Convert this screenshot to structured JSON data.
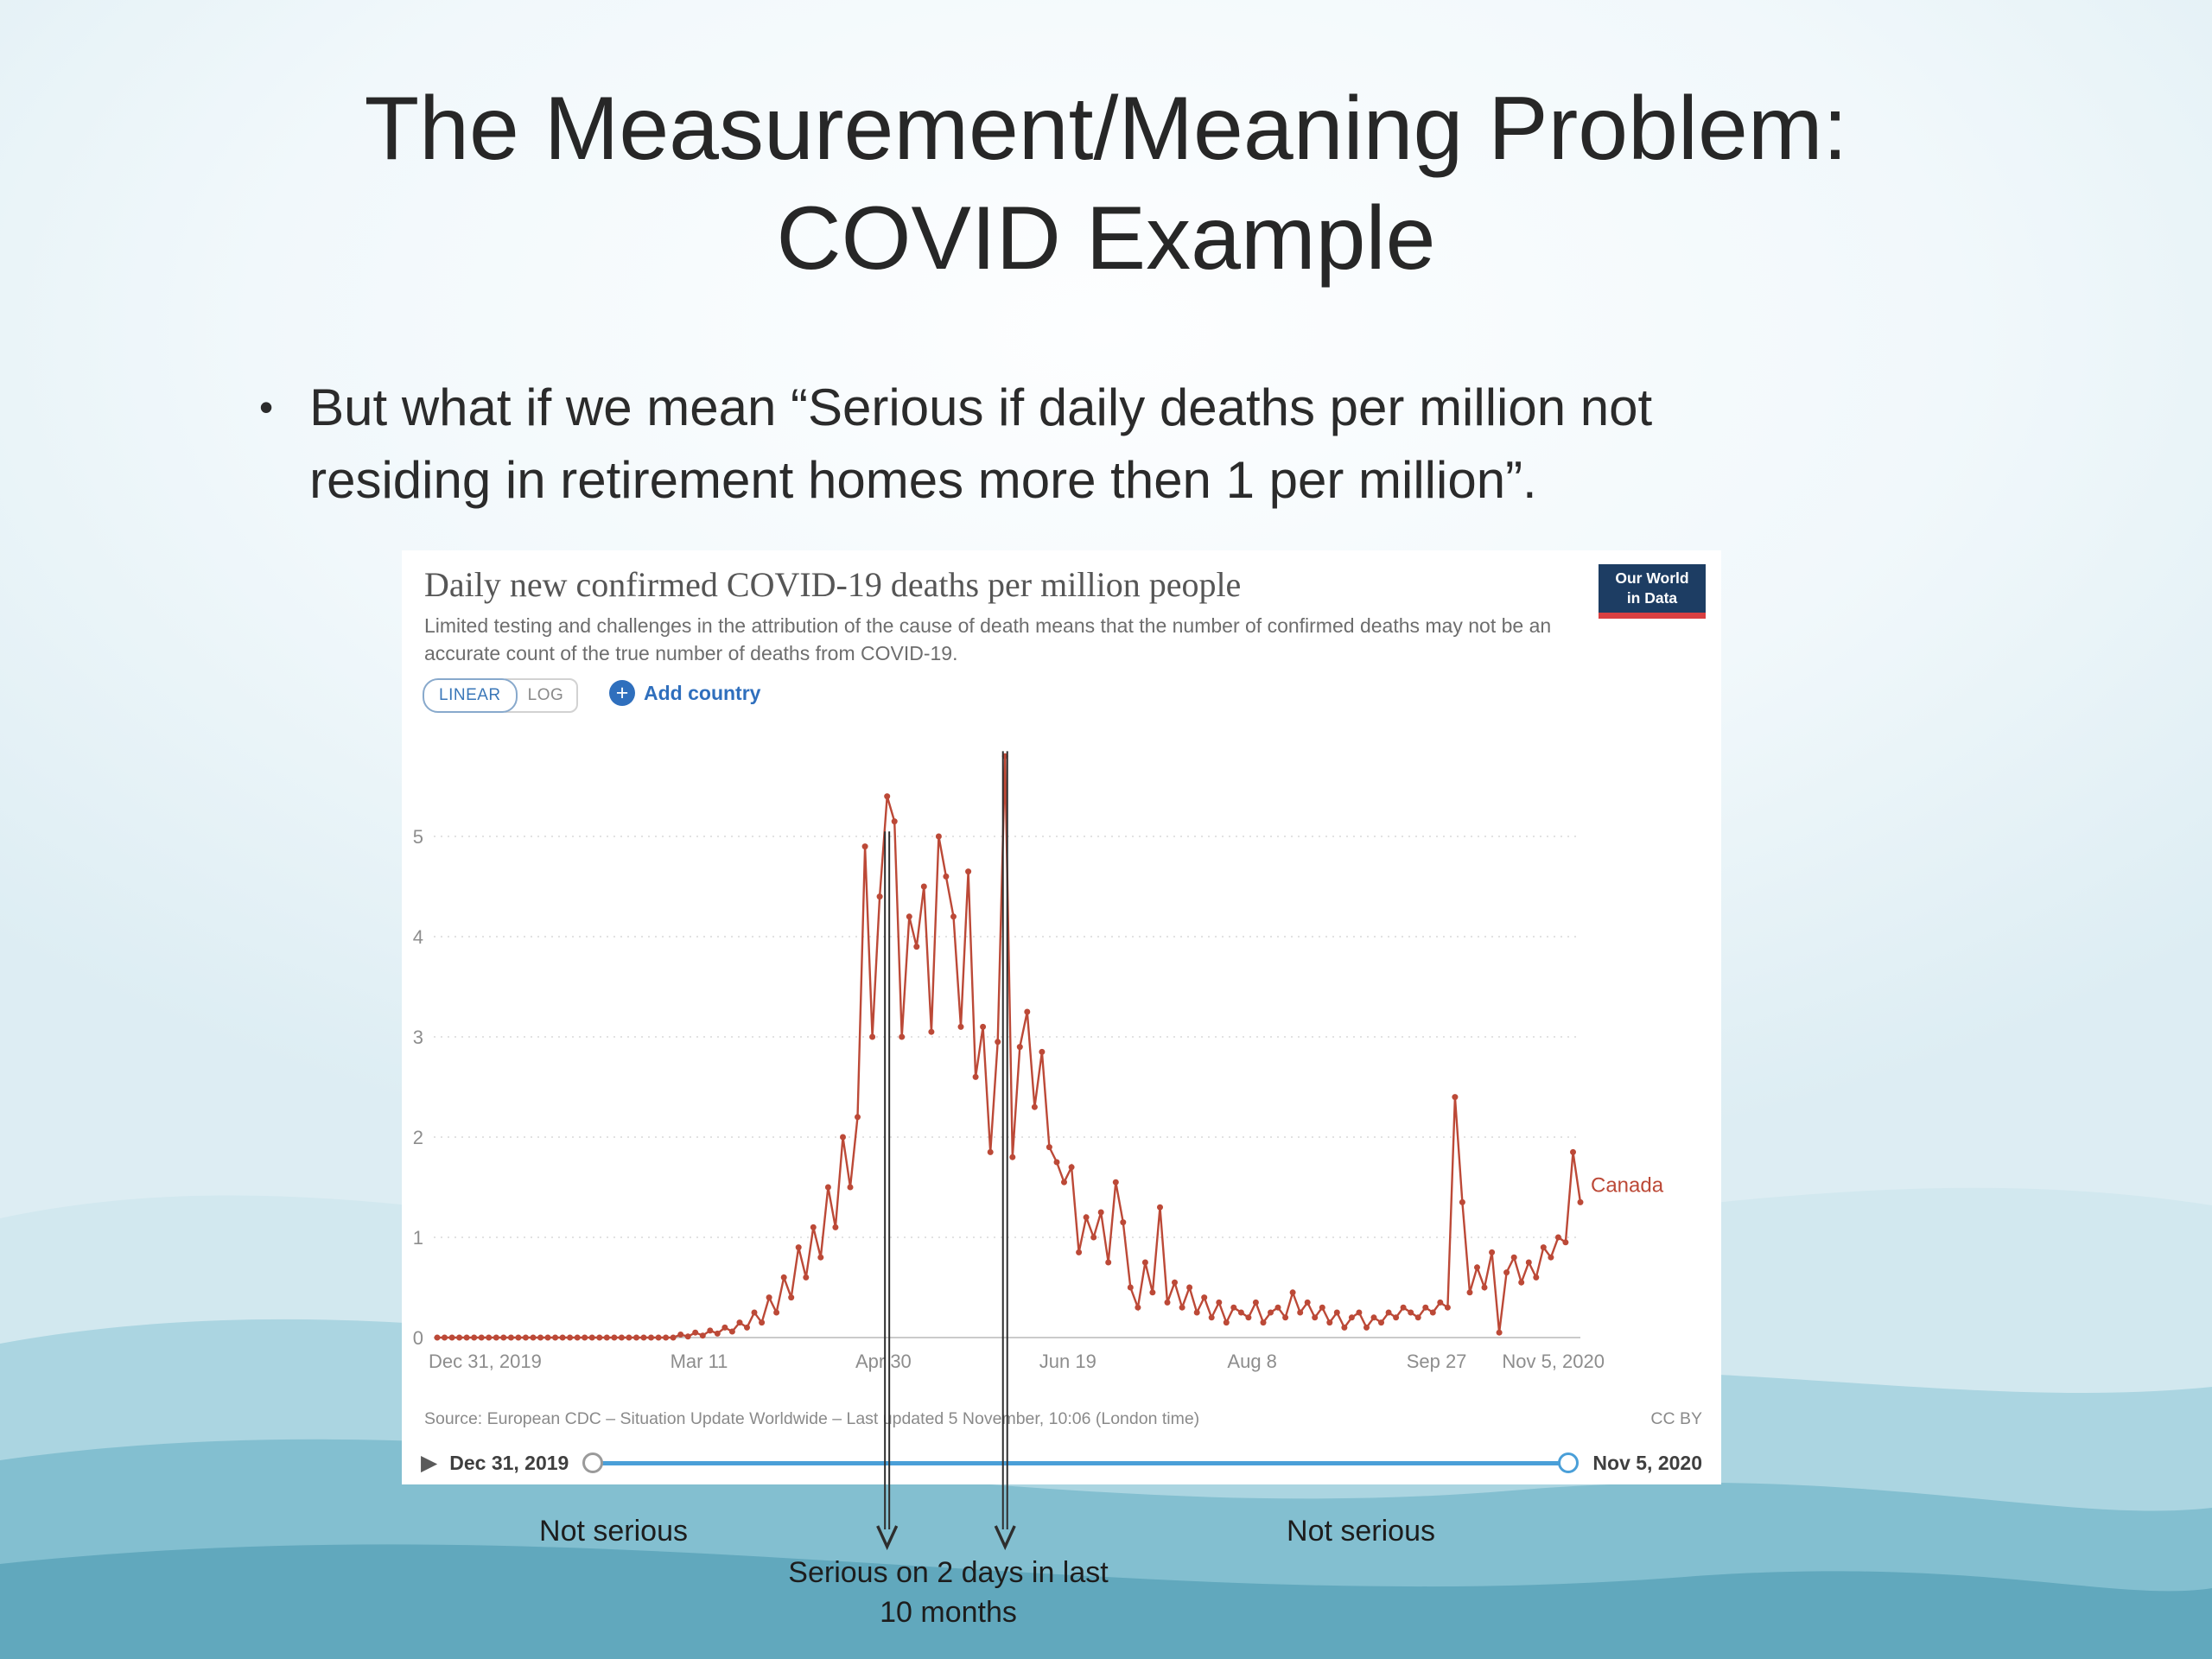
{
  "slide": {
    "title_line1": "The Measurement/Meaning Problem:",
    "title_line2": "COVID Example",
    "bullet_marker": "•",
    "bullet": "But what if we mean “Serious if daily deaths per million not residing in retirement homes more then 1 per million”."
  },
  "chart_header": {
    "logo_line1": "Our World",
    "logo_line2": "in Data",
    "linear_label": "LINEAR",
    "log_label": "LOG",
    "add_country_label": "Add country"
  },
  "icons": {
    "plus": "+",
    "play": "▶"
  },
  "chart_data": {
    "type": "line",
    "title": "Daily new confirmed COVID-19 deaths per million people",
    "subtitle": "Limited testing and challenges in the attribution of the cause of death means that the number of confirmed deaths may not be an accurate count of the true number of deaths from COVID-19.",
    "xlabel": "",
    "ylabel": "",
    "grid": true,
    "legend_position": "end-of-line",
    "x_range": [
      0,
      310
    ],
    "ylim": [
      0,
      5.9
    ],
    "y_ticks": [
      0,
      1,
      2,
      3,
      4,
      5
    ],
    "x_ticks": [
      {
        "day": 0,
        "label": "Dec 31, 2019"
      },
      {
        "day": 71,
        "label": "Mar 11"
      },
      {
        "day": 121,
        "label": "Apr 30"
      },
      {
        "day": 171,
        "label": "Jun 19"
      },
      {
        "day": 221,
        "label": "Aug 8"
      },
      {
        "day": 271,
        "label": "Sep 27"
      },
      {
        "day": 310,
        "label": "Nov 5, 2020"
      }
    ],
    "series": [
      {
        "name": "Canada",
        "color": "#bc4937",
        "points": [
          [
            0,
            0
          ],
          [
            2,
            0
          ],
          [
            4,
            0
          ],
          [
            6,
            0
          ],
          [
            8,
            0
          ],
          [
            10,
            0
          ],
          [
            12,
            0
          ],
          [
            14,
            0
          ],
          [
            16,
            0
          ],
          [
            18,
            0
          ],
          [
            20,
            0
          ],
          [
            22,
            0
          ],
          [
            24,
            0
          ],
          [
            26,
            0
          ],
          [
            28,
            0
          ],
          [
            30,
            0
          ],
          [
            32,
            0
          ],
          [
            34,
            0
          ],
          [
            36,
            0
          ],
          [
            38,
            0
          ],
          [
            40,
            0
          ],
          [
            42,
            0
          ],
          [
            44,
            0
          ],
          [
            46,
            0
          ],
          [
            48,
            0
          ],
          [
            50,
            0
          ],
          [
            52,
            0
          ],
          [
            54,
            0
          ],
          [
            56,
            0
          ],
          [
            58,
            0
          ],
          [
            60,
            0
          ],
          [
            62,
            0
          ],
          [
            64,
            0
          ],
          [
            66,
            0.03
          ],
          [
            68,
            0.01
          ],
          [
            70,
            0.05
          ],
          [
            72,
            0.02
          ],
          [
            74,
            0.07
          ],
          [
            76,
            0.04
          ],
          [
            78,
            0.1
          ],
          [
            80,
            0.06
          ],
          [
            82,
            0.15
          ],
          [
            84,
            0.1
          ],
          [
            86,
            0.25
          ],
          [
            88,
            0.15
          ],
          [
            90,
            0.4
          ],
          [
            92,
            0.25
          ],
          [
            94,
            0.6
          ],
          [
            96,
            0.4
          ],
          [
            98,
            0.9
          ],
          [
            100,
            0.6
          ],
          [
            102,
            1.1
          ],
          [
            104,
            0.8
          ],
          [
            106,
            1.5
          ],
          [
            108,
            1.1
          ],
          [
            110,
            2.0
          ],
          [
            112,
            1.5
          ],
          [
            114,
            2.2
          ],
          [
            116,
            4.9
          ],
          [
            118,
            3.0
          ],
          [
            120,
            4.4
          ],
          [
            122,
            5.4
          ],
          [
            124,
            5.15
          ],
          [
            126,
            3.0
          ],
          [
            128,
            4.2
          ],
          [
            130,
            3.9
          ],
          [
            132,
            4.5
          ],
          [
            134,
            3.05
          ],
          [
            136,
            5.0
          ],
          [
            138,
            4.6
          ],
          [
            140,
            4.2
          ],
          [
            142,
            3.1
          ],
          [
            144,
            4.65
          ],
          [
            146,
            2.6
          ],
          [
            148,
            3.1
          ],
          [
            150,
            1.85
          ],
          [
            152,
            2.95
          ],
          [
            154,
            5.8
          ],
          [
            156,
            1.8
          ],
          [
            158,
            2.9
          ],
          [
            160,
            3.25
          ],
          [
            162,
            2.3
          ],
          [
            164,
            2.85
          ],
          [
            166,
            1.9
          ],
          [
            168,
            1.75
          ],
          [
            170,
            1.55
          ],
          [
            172,
            1.7
          ],
          [
            174,
            0.85
          ],
          [
            176,
            1.2
          ],
          [
            178,
            1.0
          ],
          [
            180,
            1.25
          ],
          [
            182,
            0.75
          ],
          [
            184,
            1.55
          ],
          [
            186,
            1.15
          ],
          [
            188,
            0.5
          ],
          [
            190,
            0.3
          ],
          [
            192,
            0.75
          ],
          [
            194,
            0.45
          ],
          [
            196,
            1.3
          ],
          [
            198,
            0.35
          ],
          [
            200,
            0.55
          ],
          [
            202,
            0.3
          ],
          [
            204,
            0.5
          ],
          [
            206,
            0.25
          ],
          [
            208,
            0.4
          ],
          [
            210,
            0.2
          ],
          [
            212,
            0.35
          ],
          [
            214,
            0.15
          ],
          [
            216,
            0.3
          ],
          [
            218,
            0.25
          ],
          [
            220,
            0.2
          ],
          [
            222,
            0.35
          ],
          [
            224,
            0.15
          ],
          [
            226,
            0.25
          ],
          [
            228,
            0.3
          ],
          [
            230,
            0.2
          ],
          [
            232,
            0.45
          ],
          [
            234,
            0.25
          ],
          [
            236,
            0.35
          ],
          [
            238,
            0.2
          ],
          [
            240,
            0.3
          ],
          [
            242,
            0.15
          ],
          [
            244,
            0.25
          ],
          [
            246,
            0.1
          ],
          [
            248,
            0.2
          ],
          [
            250,
            0.25
          ],
          [
            252,
            0.1
          ],
          [
            254,
            0.2
          ],
          [
            256,
            0.15
          ],
          [
            258,
            0.25
          ],
          [
            260,
            0.2
          ],
          [
            262,
            0.3
          ],
          [
            264,
            0.25
          ],
          [
            266,
            0.2
          ],
          [
            268,
            0.3
          ],
          [
            270,
            0.25
          ],
          [
            272,
            0.35
          ],
          [
            274,
            0.3
          ],
          [
            276,
            2.4
          ],
          [
            278,
            1.35
          ],
          [
            280,
            0.45
          ],
          [
            282,
            0.7
          ],
          [
            284,
            0.5
          ],
          [
            286,
            0.85
          ],
          [
            288,
            0.05
          ],
          [
            290,
            0.65
          ],
          [
            292,
            0.8
          ],
          [
            294,
            0.55
          ],
          [
            296,
            0.75
          ],
          [
            298,
            0.6
          ],
          [
            300,
            0.9
          ],
          [
            302,
            0.8
          ],
          [
            304,
            1.0
          ],
          [
            306,
            0.95
          ],
          [
            308,
            1.85
          ],
          [
            310,
            1.35
          ]
        ]
      }
    ]
  },
  "chart_footer": {
    "source": "Source: European CDC – Situation Update Worldwide – Last updated 5 November, 10:06 (London time)",
    "license": "CC BY",
    "timeline_start": "Dec 31, 2019",
    "timeline_end": "Nov 5, 2020"
  },
  "annotations": {
    "left_label": "Not serious",
    "center_line1": "Serious on 2 days in last",
    "center_line2": "10 months",
    "right_label": "Not serious",
    "arrows": [
      {
        "day": 122,
        "top_value": 5.05
      },
      {
        "day": 154,
        "top_value": 5.85
      }
    ]
  }
}
